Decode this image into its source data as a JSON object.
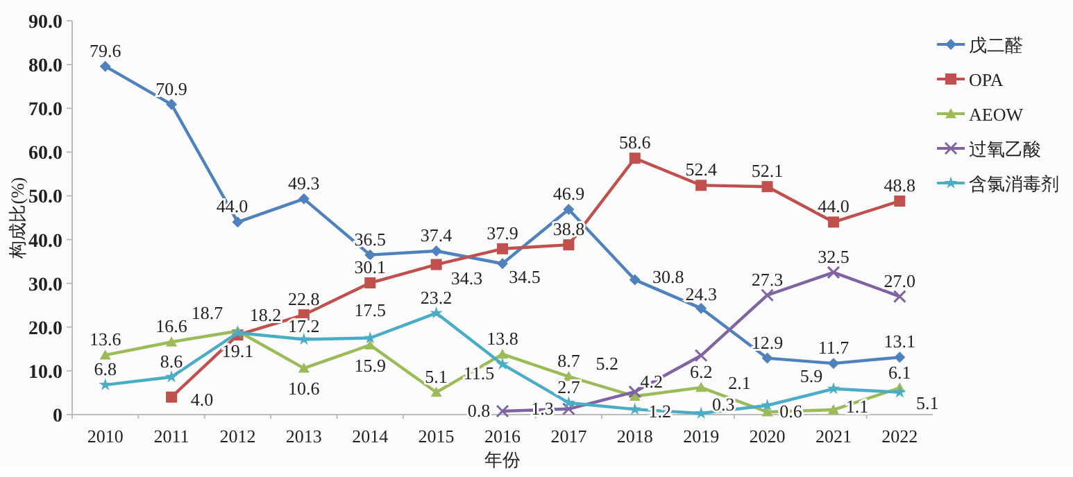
{
  "chart_data": {
    "type": "line",
    "xlabel": "年份",
    "ylabel": "构成比(%)",
    "categories": [
      "2010",
      "2011",
      "2012",
      "2013",
      "2014",
      "2015",
      "2016",
      "2017",
      "2018",
      "2019",
      "2020",
      "2021",
      "2022"
    ],
    "ylim": [
      0,
      90
    ],
    "yticks": [
      {
        "value": 0,
        "label": "0"
      },
      {
        "value": 10,
        "label": "10.0"
      },
      {
        "value": 20,
        "label": "20.0"
      },
      {
        "value": 30,
        "label": "30.0"
      },
      {
        "value": 40,
        "label": "40.0"
      },
      {
        "value": 50,
        "label": "50.0"
      },
      {
        "value": 60,
        "label": "60.0"
      },
      {
        "value": 70,
        "label": "70.0"
      },
      {
        "value": 80,
        "label": "80.0"
      },
      {
        "value": 90,
        "label": "90.0"
      }
    ],
    "grid": false,
    "legend": "right",
    "series": [
      {
        "name": "戊二醛",
        "color": "#4f81bd",
        "marker": "diamond",
        "values": [
          79.6,
          70.9,
          44.0,
          49.3,
          36.5,
          37.4,
          34.5,
          46.9,
          30.8,
          24.3,
          12.9,
          11.7,
          13.1
        ],
        "value_labels": [
          "79.6",
          "70.9",
          "44.0",
          "49.3",
          "36.5",
          "37.4",
          "34.5",
          "46.9",
          "30.8",
          "24.3",
          "12.9",
          "11.7",
          "13.1"
        ]
      },
      {
        "name": "OPA",
        "color": "#c0504d",
        "marker": "square",
        "values": [
          null,
          4.0,
          18.2,
          22.8,
          30.1,
          34.3,
          37.9,
          38.8,
          58.6,
          52.4,
          52.1,
          44.0,
          48.8
        ],
        "value_labels": [
          null,
          "4.0",
          "18.2",
          "22.8",
          "30.1",
          "34.3",
          "37.9",
          "38.8",
          "58.6",
          "52.4",
          "52.1",
          "44.0",
          "48.8"
        ]
      },
      {
        "name": "AEOW",
        "color": "#9bbb59",
        "marker": "triangle",
        "values": [
          13.6,
          16.6,
          19.1,
          10.6,
          15.9,
          5.1,
          13.8,
          8.7,
          4.2,
          6.2,
          0.6,
          1.1,
          6.1
        ],
        "value_labels": [
          "13.6",
          "16.6",
          "19.1",
          "10.6",
          "15.9",
          "5.1",
          "13.8",
          "8.7",
          "4.2",
          "6.2",
          "0.6",
          "1.1",
          "6.1"
        ]
      },
      {
        "name": "过氧乙酸",
        "color": "#8064a2",
        "marker": "cross",
        "values": [
          null,
          null,
          null,
          null,
          null,
          null,
          0.8,
          1.3,
          5.2,
          13.5,
          27.3,
          32.5,
          27.0
        ],
        "value_labels": [
          null,
          null,
          null,
          null,
          null,
          null,
          "0.8",
          "1.3",
          "5.2",
          null,
          "27.3",
          "32.5",
          "27.0"
        ]
      },
      {
        "name": "含氯消毒剂",
        "color": "#4bacc6",
        "marker": "star",
        "values": [
          6.8,
          8.6,
          18.7,
          17.2,
          17.5,
          23.2,
          11.5,
          2.7,
          1.2,
          0.3,
          2.1,
          5.9,
          5.1
        ],
        "value_labels": [
          "6.8",
          "8.6",
          "18.7",
          "17.2",
          "17.5",
          "23.2",
          "11.5",
          "2.7",
          "1.2",
          "0.3",
          "2.1",
          "5.9",
          "5.1"
        ]
      }
    ]
  }
}
